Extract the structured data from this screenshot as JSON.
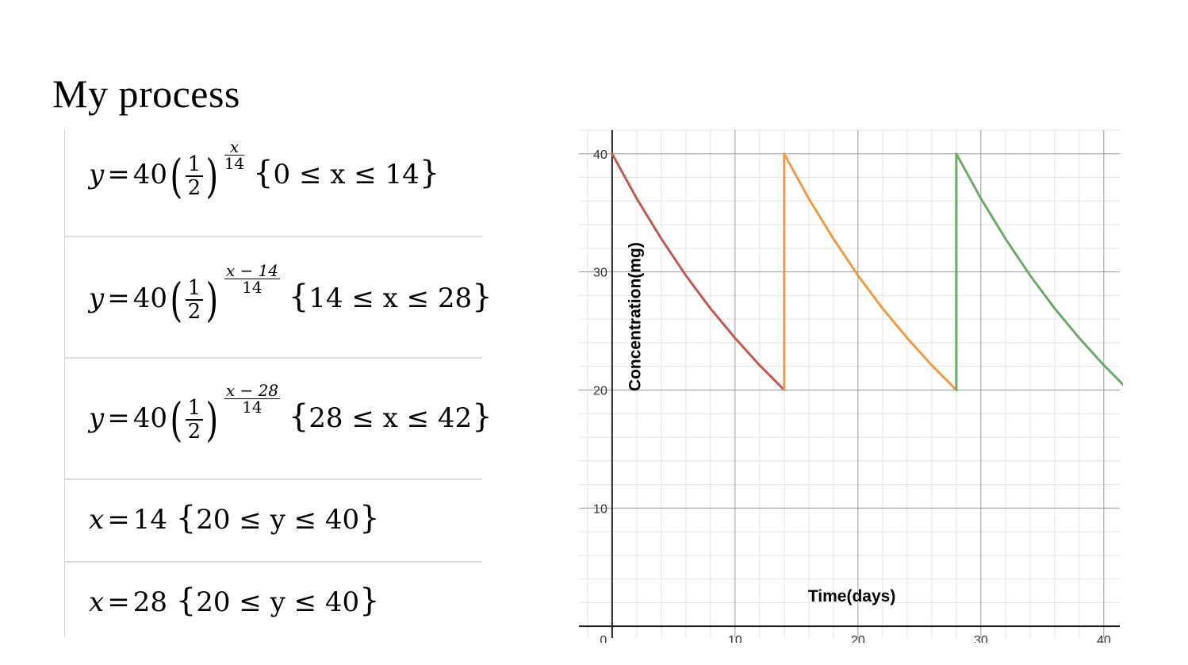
{
  "title": "My process",
  "expressions": [
    {
      "lhs": "y",
      "eq": "=",
      "coef": "40",
      "base_num": "1",
      "base_den": "2",
      "exp_num": "x",
      "exp_den": "14",
      "cond": "0 ≤ x ≤ 14"
    },
    {
      "lhs": "y",
      "eq": "=",
      "coef": "40",
      "base_num": "1",
      "base_den": "2",
      "exp_num": "x − 14",
      "exp_den": "14",
      "cond": "14 ≤ x ≤ 28"
    },
    {
      "lhs": "y",
      "eq": "=",
      "coef": "40",
      "base_num": "1",
      "base_den": "2",
      "exp_num": "x − 28",
      "exp_den": "14",
      "cond": "28 ≤ x ≤ 42"
    },
    {
      "lhs": "x",
      "eq": "=",
      "rhs": "14",
      "cond": "20 ≤ y ≤ 40"
    },
    {
      "lhs": "x",
      "eq": "=",
      "rhs": "28",
      "cond": "20 ≤ y ≤ 40"
    }
  ],
  "chart_data": {
    "type": "line",
    "xlabel": "Time(days)",
    "ylabel": "Concentration(mg)",
    "xlim": [
      -2.7,
      41.3
    ],
    "ylim": [
      -1,
      42
    ],
    "x_ticks": [
      0,
      10,
      20,
      30,
      40
    ],
    "y_ticks": [
      10,
      20,
      30,
      40
    ],
    "grid": true,
    "series": [
      {
        "color": "#c0594f",
        "x": [
          0,
          2,
          4,
          6,
          8,
          10,
          12,
          14
        ],
        "y": [
          40,
          36.2,
          32.8,
          29.7,
          26.9,
          24.4,
          22.1,
          20
        ]
      },
      {
        "color": "#ef9a44",
        "x": [
          14,
          14,
          16,
          18,
          20,
          22,
          24,
          26,
          28
        ],
        "y": [
          20,
          40,
          36.2,
          32.8,
          29.7,
          26.9,
          24.4,
          22.1,
          20
        ]
      },
      {
        "color": "#6ea86a",
        "x": [
          28,
          28,
          30,
          32,
          34,
          36,
          38,
          40,
          42
        ],
        "y": [
          20,
          40,
          36.2,
          32.8,
          29.7,
          26.9,
          24.4,
          22.1,
          20
        ]
      }
    ]
  }
}
